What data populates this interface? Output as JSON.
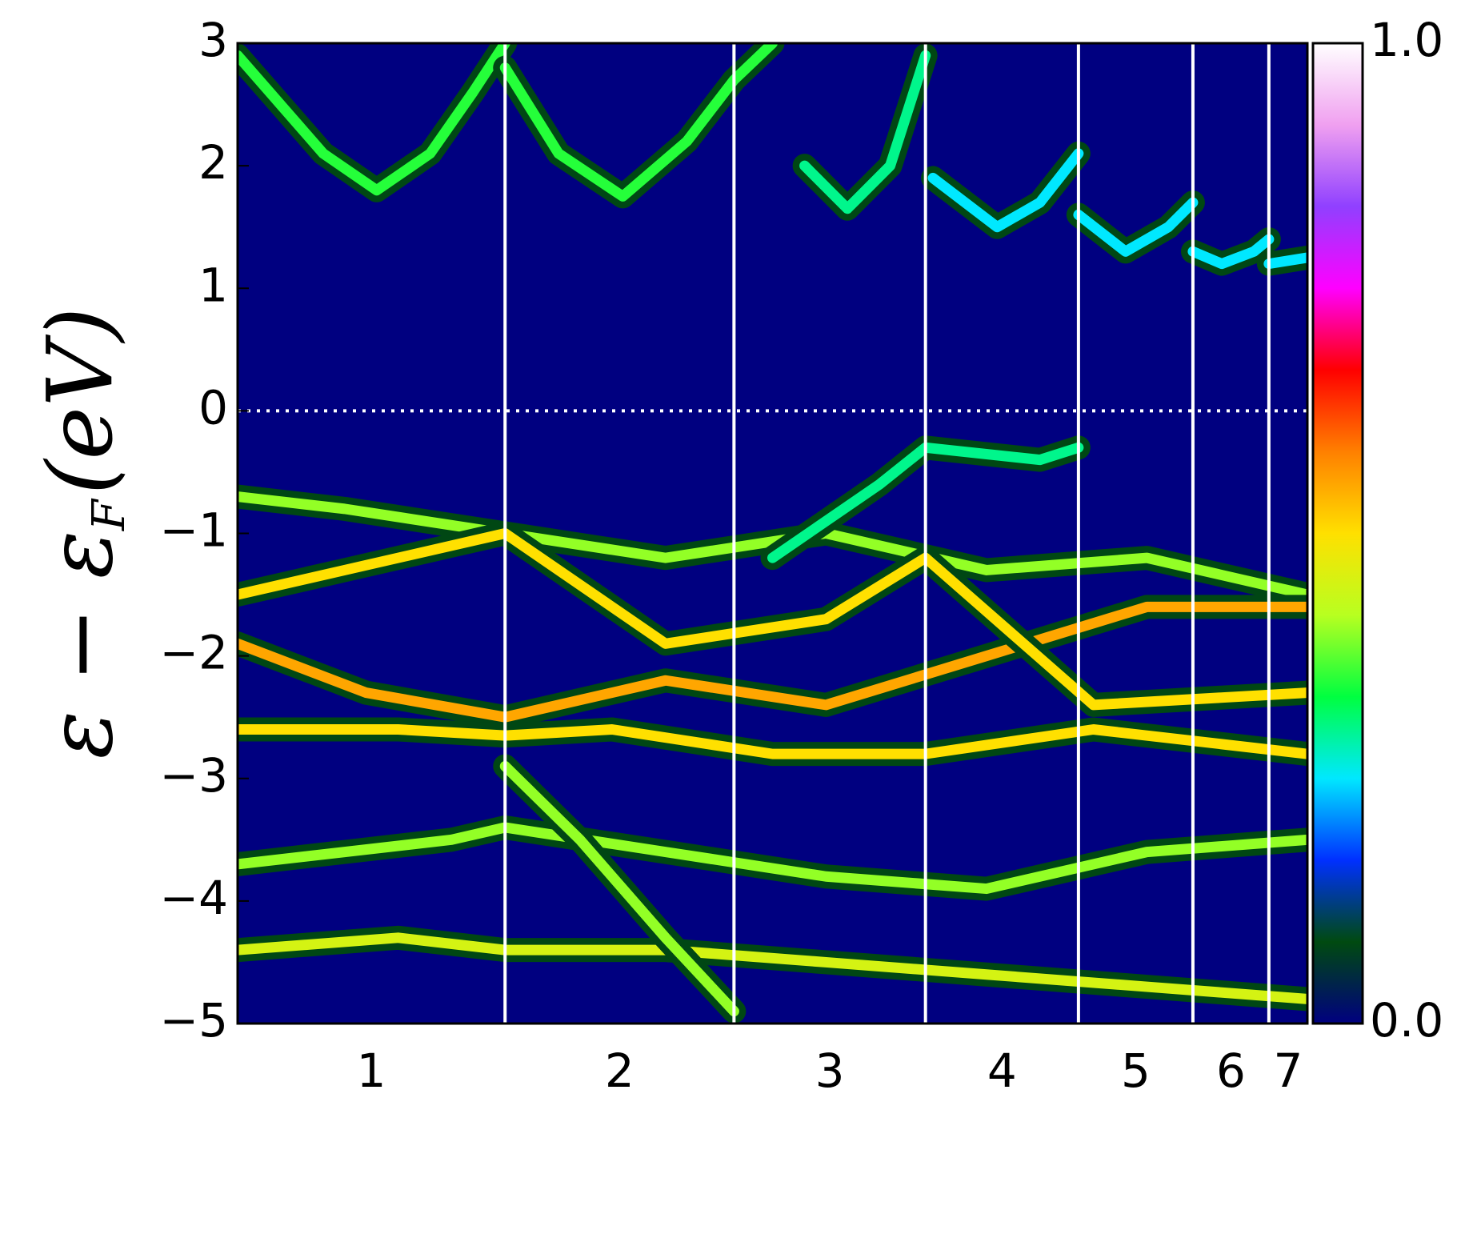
{
  "chart_data": {
    "type": "spectral",
    "ylabel": {
      "main": "ε − ε",
      "sub": "F",
      "unit": "(eV)"
    },
    "ylim": [
      -5,
      3
    ],
    "yticks": [
      {
        "value": -5,
        "label": "−5"
      },
      {
        "value": -4,
        "label": "−4"
      },
      {
        "value": -3,
        "label": "−3"
      },
      {
        "value": -2,
        "label": "−2"
      },
      {
        "value": -1,
        "label": "−1"
      },
      0,
      1,
      2,
      3
    ],
    "xlim": [
      0,
      1
    ],
    "categories": [
      "1",
      "2",
      "3",
      "4",
      "5",
      "6",
      "7"
    ],
    "boundaries": [
      0.25,
      0.464,
      0.643,
      0.786,
      0.893,
      0.964
    ],
    "fermi_level": 0,
    "background": "#000080",
    "bands": [
      {
        "x": [
          0,
          0.04,
          0.08,
          0.13,
          0.18,
          0.22,
          0.25
        ],
        "y": [
          2.9,
          2.5,
          2.1,
          1.8,
          2.1,
          2.6,
          3.0
        ],
        "intensity": 0.35
      },
      {
        "x": [
          0.25,
          0.3,
          0.36,
          0.42,
          0.464,
          0.5
        ],
        "y": [
          2.8,
          2.1,
          1.75,
          2.2,
          2.7,
          3.0
        ],
        "intensity": 0.35
      },
      {
        "x": [
          0.53,
          0.57,
          0.61,
          0.643
        ],
        "y": [
          2.0,
          1.65,
          2.0,
          2.9
        ],
        "intensity": 0.3
      },
      {
        "x": [
          0.65,
          0.71,
          0.75,
          0.786
        ],
        "y": [
          1.9,
          1.5,
          1.7,
          2.1
        ],
        "intensity": 0.25
      },
      {
        "x": [
          0.786,
          0.83,
          0.87,
          0.893
        ],
        "y": [
          1.6,
          1.3,
          1.5,
          1.7
        ],
        "intensity": 0.25
      },
      {
        "x": [
          0.893,
          0.92,
          0.95,
          0.964
        ],
        "y": [
          1.3,
          1.2,
          1.3,
          1.4
        ],
        "intensity": 0.25
      },
      {
        "x": [
          0.964,
          1
        ],
        "y": [
          1.2,
          1.25
        ],
        "intensity": 0.25
      },
      {
        "x": [
          0,
          0.1,
          0.25,
          0.4,
          0.55,
          0.7,
          0.85,
          1
        ],
        "y": [
          -0.7,
          -0.8,
          -1.0,
          -1.2,
          -1.0,
          -1.3,
          -1.2,
          -1.5
        ],
        "intensity": 0.4
      },
      {
        "x": [
          0,
          0.12,
          0.25,
          0.4,
          0.55,
          0.7,
          0.85,
          1
        ],
        "y": [
          -1.9,
          -2.3,
          -2.5,
          -2.2,
          -2.4,
          -2.0,
          -1.6,
          -1.6
        ],
        "intensity": 0.55
      },
      {
        "x": [
          0,
          0.1,
          0.2,
          0.25,
          0.4,
          0.55,
          0.643,
          0.8,
          1
        ],
        "y": [
          -1.5,
          -1.3,
          -1.1,
          -1.0,
          -1.9,
          -1.7,
          -1.2,
          -2.4,
          -2.3
        ],
        "intensity": 0.5
      },
      {
        "x": [
          0,
          0.15,
          0.25,
          0.35,
          0.5,
          0.643,
          0.8,
          1
        ],
        "y": [
          -2.6,
          -2.6,
          -2.65,
          -2.6,
          -2.8,
          -2.8,
          -2.6,
          -2.8
        ],
        "intensity": 0.5
      },
      {
        "x": [
          0,
          0.2,
          0.25,
          0.4,
          0.55,
          0.7,
          0.85,
          1
        ],
        "y": [
          -3.7,
          -3.5,
          -3.4,
          -3.6,
          -3.8,
          -3.9,
          -3.6,
          -3.5
        ],
        "intensity": 0.4
      },
      {
        "x": [
          0,
          0.15,
          0.25,
          0.4,
          0.55,
          0.7,
          0.85,
          1
        ],
        "y": [
          -4.4,
          -4.3,
          -4.4,
          -4.4,
          -4.5,
          -4.6,
          -4.7,
          -4.8
        ],
        "intensity": 0.45
      },
      {
        "x": [
          0.25,
          0.32,
          0.4,
          0.464
        ],
        "y": [
          -2.9,
          -3.5,
          -4.3,
          -4.9
        ],
        "intensity": 0.4
      },
      {
        "x": [
          0.5,
          0.6,
          0.643,
          0.75,
          0.786
        ],
        "y": [
          -1.2,
          -0.6,
          -0.3,
          -0.4,
          -0.3
        ],
        "intensity": 0.3
      }
    ],
    "colorbar": {
      "lim": [
        0,
        1
      ],
      "ticks": [
        {
          "value": 0,
          "label": "0.0"
        },
        {
          "value": 1,
          "label": "1.0"
        }
      ],
      "colors": [
        "#000080",
        "#004a10",
        "#0030ff",
        "#00e8ff",
        "#00ff40",
        "#b8ff20",
        "#ffe000",
        "#ff8000",
        "#ff0000",
        "#ff00ff",
        "#9040ff",
        "#f0a0f0",
        "#ffffff"
      ]
    }
  }
}
